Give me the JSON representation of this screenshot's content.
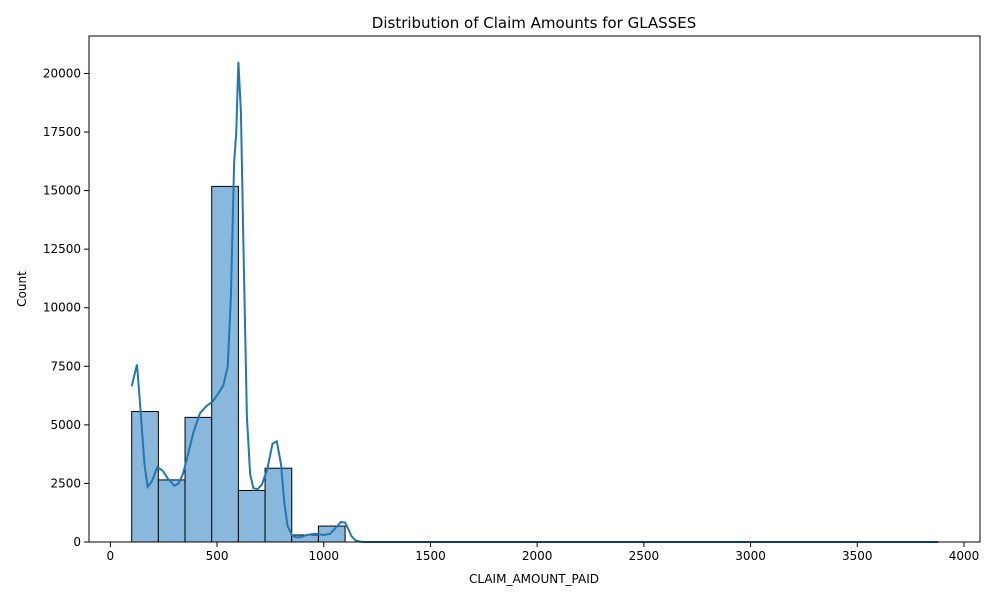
{
  "chart_data": {
    "type": "bar",
    "title": "Distribution of Claim Amounts for GLASSES",
    "xlabel": "CLAIM_AMOUNT_PAID",
    "ylabel": "Count",
    "xlim": [
      -100,
      4075
    ],
    "ylim": [
      0,
      21600
    ],
    "x_ticks": [
      0,
      500,
      1000,
      1500,
      2000,
      2500,
      3000,
      3500,
      4000
    ],
    "y_ticks": [
      0,
      2500,
      5000,
      7500,
      10000,
      12500,
      15000,
      17500,
      20000
    ],
    "grid": false,
    "bins": [
      {
        "x0": 100,
        "x1": 225,
        "count": 5570
      },
      {
        "x0": 225,
        "x1": 350,
        "count": 2650
      },
      {
        "x0": 350,
        "x1": 475,
        "count": 5320
      },
      {
        "x0": 475,
        "x1": 600,
        "count": 15180
      },
      {
        "x0": 600,
        "x1": 725,
        "count": 2200
      },
      {
        "x0": 725,
        "x1": 850,
        "count": 3150
      },
      {
        "x0": 850,
        "x1": 975,
        "count": 300
      },
      {
        "x0": 975,
        "x1": 1100,
        "count": 680
      },
      {
        "x0": 1100,
        "x1": 1225,
        "count": 0
      },
      {
        "x0": 1225,
        "x1": 1350,
        "count": 0
      },
      {
        "x0": 1350,
        "x1": 1475,
        "count": 0
      },
      {
        "x0": 1475,
        "x1": 1600,
        "count": 0
      },
      {
        "x0": 1600,
        "x1": 1725,
        "count": 0
      },
      {
        "x0": 1725,
        "x1": 1850,
        "count": 0
      },
      {
        "x0": 1850,
        "x1": 1975,
        "count": 0
      },
      {
        "x0": 1975,
        "x1": 2100,
        "count": 0
      },
      {
        "x0": 2100,
        "x1": 2225,
        "count": 0
      },
      {
        "x0": 2225,
        "x1": 2350,
        "count": 0
      },
      {
        "x0": 2350,
        "x1": 2475,
        "count": 0
      },
      {
        "x0": 2475,
        "x1": 2600,
        "count": 0
      },
      {
        "x0": 2600,
        "x1": 2725,
        "count": 0
      },
      {
        "x0": 2725,
        "x1": 2850,
        "count": 0
      },
      {
        "x0": 2850,
        "x1": 2975,
        "count": 0
      },
      {
        "x0": 2975,
        "x1": 3100,
        "count": 0
      },
      {
        "x0": 3100,
        "x1": 3225,
        "count": 0
      },
      {
        "x0": 3225,
        "x1": 3350,
        "count": 0
      },
      {
        "x0": 3350,
        "x1": 3475,
        "count": 0
      },
      {
        "x0": 3475,
        "x1": 3600,
        "count": 0
      },
      {
        "x0": 3600,
        "x1": 3725,
        "count": 0
      },
      {
        "x0": 3725,
        "x1": 3880,
        "count": 0
      }
    ],
    "kde": {
      "name": "kde",
      "x": [
        100,
        125,
        140,
        160,
        175,
        195,
        220,
        245,
        270,
        300,
        320,
        340,
        360,
        390,
        420,
        450,
        480,
        510,
        530,
        550,
        565,
        580,
        590,
        600,
        612,
        625,
        640,
        655,
        670,
        690,
        710,
        735,
        760,
        780,
        800,
        815,
        830,
        850,
        870,
        890,
        920,
        960,
        1000,
        1030,
        1060,
        1080,
        1100,
        1115,
        1130,
        1150,
        1175,
        1200,
        1250,
        1500,
        2000,
        2500,
        3000,
        3500,
        3880
      ],
      "y": [
        6650,
        7580,
        5800,
        3300,
        2350,
        2600,
        3200,
        3050,
        2700,
        2400,
        2500,
        2900,
        3600,
        4700,
        5500,
        5800,
        6000,
        6400,
        6700,
        7500,
        10500,
        16200,
        17500,
        20500,
        18300,
        12000,
        5300,
        2900,
        2300,
        2250,
        2450,
        3100,
        4200,
        4300,
        3300,
        1700,
        700,
        300,
        200,
        200,
        300,
        350,
        300,
        350,
        650,
        850,
        830,
        550,
        250,
        60,
        10,
        0,
        0,
        0,
        0,
        0,
        0,
        0,
        0
      ],
      "color": "#1f77b4"
    },
    "colors": {
      "bar_fill": "#8ab8dc",
      "bar_edge": "#000000",
      "line": "#1f77b4"
    }
  }
}
